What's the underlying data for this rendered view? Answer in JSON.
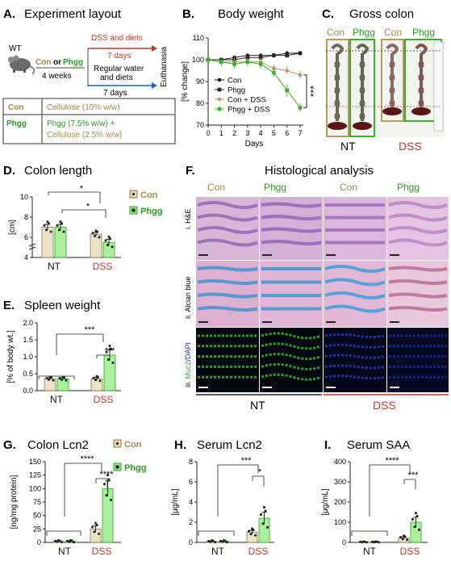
{
  "colors": {
    "con": "#c9b48a",
    "con_dark": "#8c7447",
    "con_text": "#a08a45",
    "phgg": "#9be38e",
    "phgg_dark": "#2aa81f",
    "phgg_text": "#2a9a20",
    "dss_red": "#c0392b",
    "nt_line": "#222222"
  },
  "panels": {
    "a": {
      "letter": "A.",
      "title": "Experiment layout"
    },
    "b": {
      "letter": "B.",
      "title": "Body weight"
    },
    "c": {
      "letter": "C.",
      "title": "Gross colon"
    },
    "d": {
      "letter": "D.",
      "title": "Colon length"
    },
    "e": {
      "letter": "E.",
      "title": "Spleen weight"
    },
    "f": {
      "letter": "F.",
      "title": "Histological analysis"
    },
    "g": {
      "letter": "G.",
      "title": "Colon Lcn2"
    },
    "h": {
      "letter": "H.",
      "title": "Serum Lcn2"
    },
    "i": {
      "letter": "I.",
      "title": "Serum SAA"
    }
  },
  "experiment": {
    "mouse": "WT",
    "diet_con": "Con",
    "diet_or": "or",
    "diet_phgg": "Phgg",
    "duration1": "4 weeks",
    "dss_line1": "DSS and diets",
    "dss_line2": "7 days",
    "reg_line1": "Regular water",
    "reg_line2": "and diets",
    "reg_line3": "7 days",
    "end": "Euthanasia",
    "table": [
      {
        "group": "Con",
        "diet": "Cellulose (10% w/w)"
      },
      {
        "group": "Phgg",
        "diet": "Phgg (7.5% w/w) +",
        "diet2": "Cellulose (2.5% w/w)"
      }
    ]
  },
  "gross_colon": {
    "labels": [
      "Con",
      "Phgg",
      "Con",
      "Phgg"
    ],
    "groups": [
      "NT",
      "DSS"
    ]
  },
  "histology": {
    "column_labels": [
      "Con",
      "Phgg",
      "Con",
      "Phgg"
    ],
    "row_labels": [
      "i. H&E",
      "ii. Alcian blue"
    ],
    "row3_prefix": "iii.",
    "row3_muc": "Muc2",
    "row3_dapi": "/DAPI",
    "groups": [
      "NT",
      "DSS"
    ]
  },
  "legend": {
    "con": "Con",
    "phgg": "Phgg"
  },
  "chart_data": [
    {
      "id": "body_weight",
      "type": "line",
      "title": "Body weight",
      "xlabel": "Days",
      "ylabel": "[% change]",
      "x": [
        0,
        1,
        2,
        3,
        4,
        5,
        6,
        7
      ],
      "xlim": [
        0,
        7
      ],
      "ylim": [
        70,
        110
      ],
      "yticks": [
        70,
        80,
        90,
        100,
        110
      ],
      "series": [
        {
          "name": "Con",
          "values": [
            100,
            100,
            101,
            102,
            102,
            102,
            103,
            103
          ],
          "err": [
            1,
            1,
            1,
            1,
            1,
            1,
            1,
            1
          ]
        },
        {
          "name": "Phgg",
          "values": [
            100,
            100,
            100,
            101,
            101,
            102,
            102,
            103
          ],
          "err": [
            1,
            1,
            1,
            1,
            1,
            1,
            1,
            1
          ]
        },
        {
          "name": "Con + DSS",
          "values": [
            100,
            99,
            99,
            99,
            99,
            96,
            95,
            93
          ],
          "err": [
            1,
            2,
            2,
            2,
            2,
            2,
            2,
            2
          ]
        },
        {
          "name": "Phgg + DSS",
          "values": [
            100,
            99,
            98,
            99,
            98,
            94,
            86,
            78
          ],
          "err": [
            1,
            2,
            2,
            2,
            2,
            2,
            3,
            2
          ]
        }
      ],
      "annotation": "***"
    },
    {
      "id": "colon_length",
      "type": "bar",
      "title": "Colon length",
      "ylabel": "[cm]",
      "categories": [
        "NT",
        "DSS"
      ],
      "ylim": [
        4,
        10
      ],
      "yticks": [
        4,
        6,
        8,
        10
      ],
      "series": [
        {
          "name": "Con",
          "values": [
            7.0,
            6.3
          ],
          "err": [
            0.3,
            0.2
          ]
        },
        {
          "name": "Phgg",
          "values": [
            7.0,
            5.5
          ],
          "err": [
            0.3,
            0.3
          ]
        }
      ],
      "annotations": [
        "*",
        "*"
      ]
    },
    {
      "id": "spleen_weight",
      "type": "bar",
      "title": "Spleen weight",
      "ylabel": "[% of body wt.]",
      "categories": [
        "NT",
        "DSS"
      ],
      "ylim": [
        0,
        2
      ],
      "yticks": [
        0.0,
        0.5,
        1.0,
        1.5,
        2.0
      ],
      "series": [
        {
          "name": "Con",
          "values": [
            0.35,
            0.35
          ],
          "err": [
            0.03,
            0.04
          ]
        },
        {
          "name": "Phgg",
          "values": [
            0.35,
            1.05
          ],
          "err": [
            0.03,
            0.15
          ]
        }
      ],
      "annotations": [
        "***",
        "***"
      ]
    },
    {
      "id": "colon_lcn2",
      "type": "bar",
      "title": "Colon Lcn2",
      "ylabel": "[ng/mg protein]",
      "categories": [
        "NT",
        "DSS"
      ],
      "ylim": [
        0,
        150
      ],
      "yticks": [
        0,
        25,
        50,
        75,
        100,
        125,
        150
      ],
      "series": [
        {
          "name": "Con",
          "values": [
            2,
            25
          ],
          "err": [
            1,
            6
          ]
        },
        {
          "name": "Phgg",
          "values": [
            2,
            100
          ],
          "err": [
            1,
            14
          ]
        }
      ],
      "annotations": [
        "****",
        "****"
      ]
    },
    {
      "id": "serum_lcn2",
      "type": "bar",
      "title": "Serum Lcn2",
      "ylabel": "[μg/mL]",
      "categories": [
        "NT",
        "DSS"
      ],
      "ylim": [
        0,
        8
      ],
      "yticks": [
        0,
        2,
        4,
        6,
        8
      ],
      "series": [
        {
          "name": "Con",
          "values": [
            0.1,
            1.0
          ],
          "err": [
            0.05,
            0.2
          ]
        },
        {
          "name": "Phgg",
          "values": [
            0.1,
            2.4
          ],
          "err": [
            0.05,
            0.6
          ]
        }
      ],
      "annotations": [
        "***",
        "*"
      ]
    },
    {
      "id": "serum_saa",
      "type": "bar",
      "title": "Serum SAA",
      "ylabel": "[μg/mL]",
      "categories": [
        "NT",
        "DSS"
      ],
      "ylim": [
        0,
        400
      ],
      "yticks": [
        0,
        100,
        200,
        300,
        400
      ],
      "series": [
        {
          "name": "Con",
          "values": [
            2,
            22
          ],
          "err": [
            1,
            6
          ]
        },
        {
          "name": "Phgg",
          "values": [
            2,
            100
          ],
          "err": [
            1,
            25
          ]
        }
      ],
      "annotations": [
        "****",
        "***"
      ]
    }
  ]
}
